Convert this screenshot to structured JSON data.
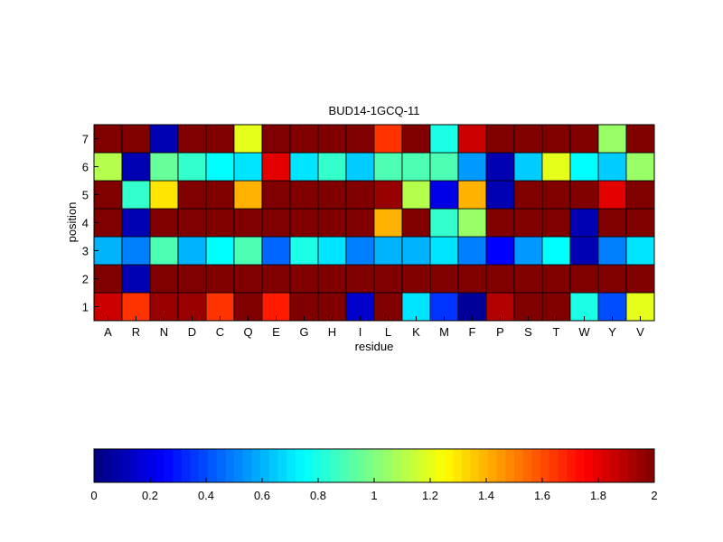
{
  "chart_data": [
    {
      "type": "heatmap",
      "title": "BUD14-1GCQ-11",
      "xlabel": "residue",
      "ylabel": "position",
      "x_categories": [
        "A",
        "R",
        "N",
        "D",
        "C",
        "Q",
        "E",
        "G",
        "H",
        "I",
        "L",
        "K",
        "M",
        "F",
        "P",
        "S",
        "T",
        "W",
        "Y",
        "V"
      ],
      "y_categories": [
        "1",
        "2",
        "3",
        "4",
        "5",
        "6",
        "7"
      ],
      "value_range": [
        0,
        2
      ],
      "colormap": "jet",
      "grid": true,
      "values": [
        [
          1.85,
          1.65,
          1.95,
          1.95,
          1.65,
          2.0,
          1.7,
          2.0,
          2.0,
          0.15,
          2.0,
          0.7,
          0.35,
          0.05,
          1.9,
          2.0,
          2.0,
          0.8,
          0.4,
          1.2
        ],
        [
          2.0,
          0.1,
          2.0,
          2.0,
          2.0,
          2.0,
          2.0,
          2.0,
          2.0,
          2.0,
          2.0,
          2.0,
          2.0,
          2.0,
          2.0,
          2.0,
          2.0,
          2.0,
          2.0,
          2.0
        ],
        [
          0.6,
          0.5,
          0.9,
          0.6,
          0.75,
          0.9,
          0.45,
          0.8,
          0.7,
          0.5,
          0.6,
          0.6,
          0.7,
          0.5,
          0.25,
          0.55,
          0.75,
          0.1,
          0.5,
          0.7
        ],
        [
          2.0,
          0.1,
          2.0,
          2.0,
          2.0,
          2.0,
          2.0,
          2.0,
          2.0,
          2.0,
          1.4,
          2.0,
          0.85,
          1.05,
          2.0,
          2.0,
          2.0,
          0.1,
          2.0,
          2.0
        ],
        [
          2.0,
          0.85,
          1.3,
          2.0,
          2.0,
          1.4,
          2.0,
          2.0,
          2.0,
          2.0,
          1.95,
          1.1,
          0.2,
          1.4,
          0.1,
          2.0,
          2.0,
          2.0,
          1.8,
          2.0
        ],
        [
          1.1,
          0.1,
          0.95,
          0.85,
          0.75,
          0.7,
          1.8,
          0.7,
          0.85,
          0.65,
          0.9,
          0.9,
          0.9,
          0.55,
          0.1,
          0.65,
          1.2,
          0.75,
          0.65,
          1.05
        ],
        [
          2.0,
          2.0,
          0.1,
          2.0,
          2.0,
          1.2,
          2.0,
          2.0,
          2.0,
          2.0,
          1.65,
          2.0,
          0.8,
          1.85,
          2.0,
          2.0,
          2.0,
          2.0,
          1.05,
          2.0
        ]
      ]
    },
    {
      "type": "colorbar",
      "orientation": "horizontal",
      "colormap": "jet",
      "range": [
        0,
        2
      ],
      "ticks": [
        "0",
        "0.2",
        "0.4",
        "0.6",
        "0.8",
        "1",
        "1.2",
        "1.4",
        "1.6",
        "1.8",
        "2"
      ],
      "levels": 64
    }
  ]
}
